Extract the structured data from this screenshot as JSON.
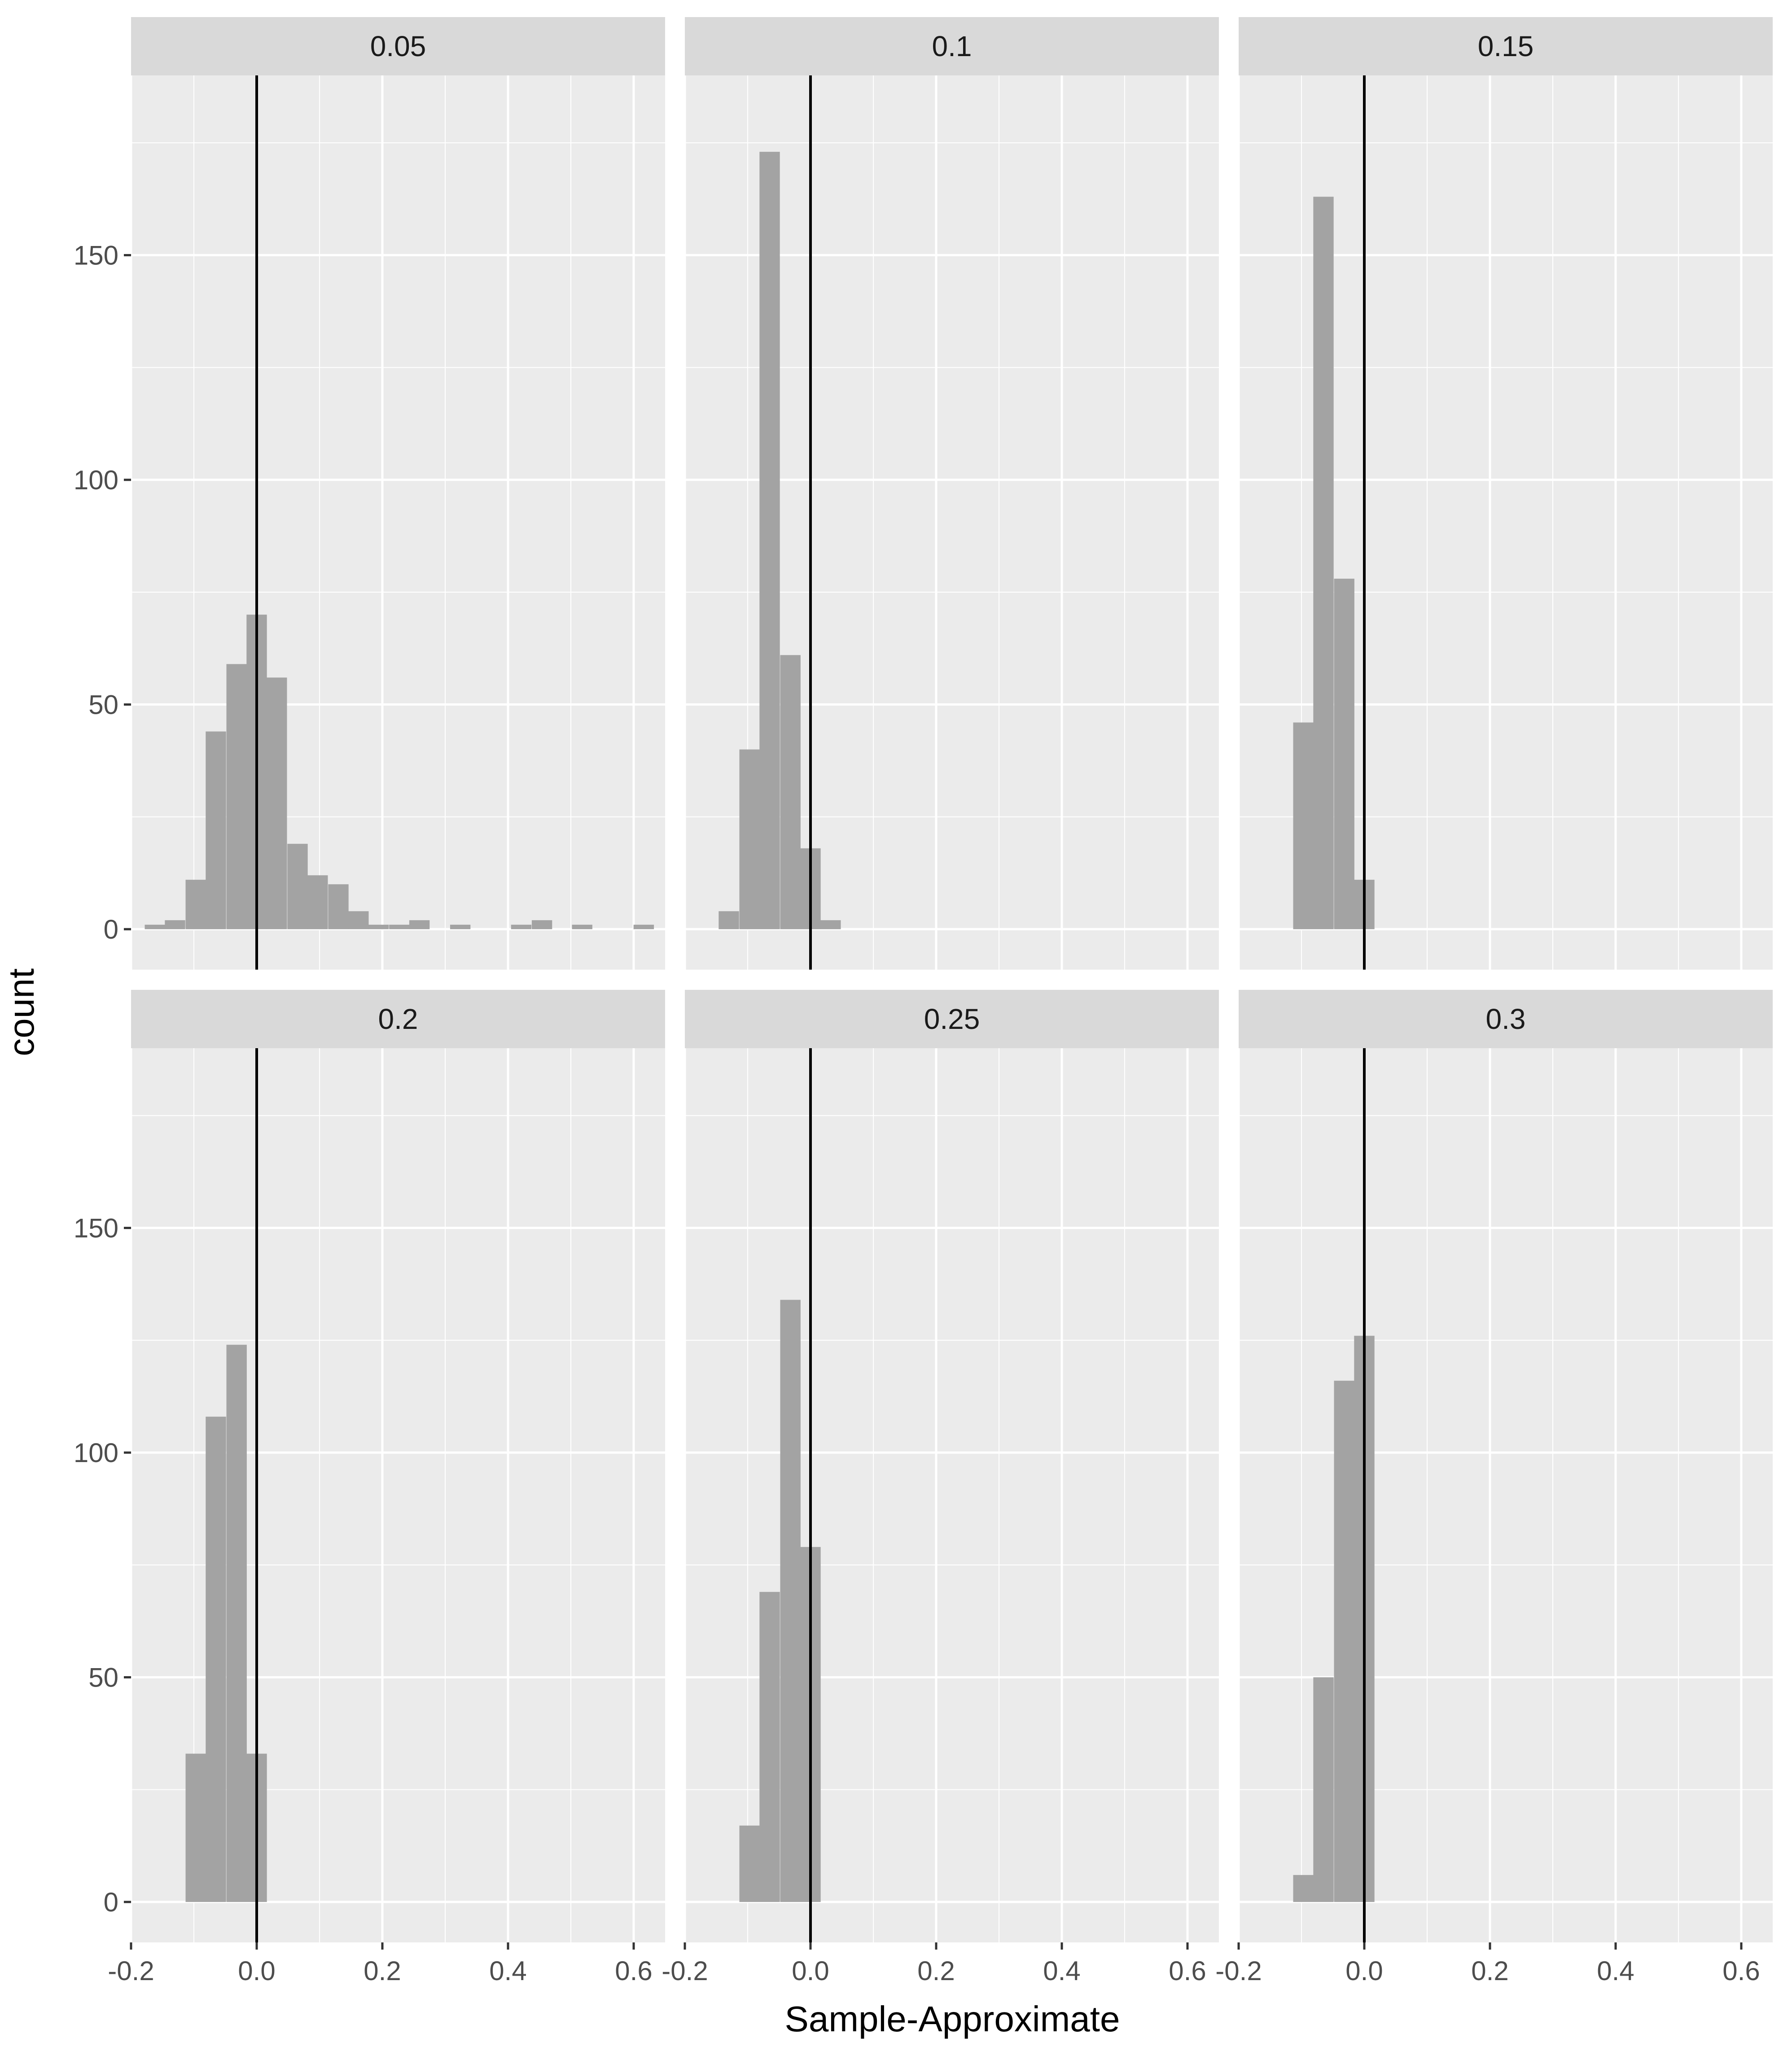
{
  "chart_data": {
    "type": "bar",
    "subtype": "faceted-histogram",
    "xlabel": "Sample-Approximate",
    "ylabel": "count",
    "xlim": [
      -0.2,
      0.65
    ],
    "ylim": [
      -9,
      190
    ],
    "x_ticks": [
      -0.2,
      0.0,
      0.2,
      0.4,
      0.6
    ],
    "x_tick_labels": [
      "-0.2",
      "0.0",
      "0.2",
      "0.4",
      "0.6"
    ],
    "y_ticks": [
      0,
      50,
      100,
      150
    ],
    "y_tick_labels": [
      "0",
      "50",
      "100",
      "150"
    ],
    "bin_width": 0.0324,
    "reference_line_x": 0,
    "grid": true,
    "bar_color": "#a3a3a3",
    "panel_background": "#ebebeb",
    "strip_background": "#d9d9d9",
    "facets": [
      {
        "label": "0.05",
        "bins": [
          {
            "x": -0.162,
            "count": 1
          },
          {
            "x": -0.13,
            "count": 2
          },
          {
            "x": -0.097,
            "count": 11
          },
          {
            "x": -0.065,
            "count": 44
          },
          {
            "x": -0.032,
            "count": 59
          },
          {
            "x": 0.0,
            "count": 70
          },
          {
            "x": 0.032,
            "count": 56
          },
          {
            "x": 0.065,
            "count": 19
          },
          {
            "x": 0.097,
            "count": 12
          },
          {
            "x": 0.13,
            "count": 10
          },
          {
            "x": 0.162,
            "count": 4
          },
          {
            "x": 0.194,
            "count": 1
          },
          {
            "x": 0.227,
            "count": 1
          },
          {
            "x": 0.259,
            "count": 2
          },
          {
            "x": 0.324,
            "count": 1
          },
          {
            "x": 0.421,
            "count": 1
          },
          {
            "x": 0.454,
            "count": 2
          },
          {
            "x": 0.518,
            "count": 1
          },
          {
            "x": 0.616,
            "count": 1
          }
        ]
      },
      {
        "label": "0.1",
        "bins": [
          {
            "x": -0.13,
            "count": 4
          },
          {
            "x": -0.097,
            "count": 40
          },
          {
            "x": -0.065,
            "count": 173
          },
          {
            "x": -0.032,
            "count": 61
          },
          {
            "x": 0.0,
            "count": 18
          },
          {
            "x": 0.032,
            "count": 2
          }
        ]
      },
      {
        "label": "0.15",
        "bins": [
          {
            "x": -0.097,
            "count": 46
          },
          {
            "x": -0.065,
            "count": 163
          },
          {
            "x": -0.032,
            "count": 78
          },
          {
            "x": 0.0,
            "count": 11
          }
        ]
      },
      {
        "label": "0.2",
        "bins": [
          {
            "x": -0.097,
            "count": 33
          },
          {
            "x": -0.065,
            "count": 108
          },
          {
            "x": -0.032,
            "count": 124
          },
          {
            "x": 0.0,
            "count": 33
          }
        ]
      },
      {
        "label": "0.25",
        "bins": [
          {
            "x": -0.097,
            "count": 17
          },
          {
            "x": -0.065,
            "count": 69
          },
          {
            "x": -0.032,
            "count": 134
          },
          {
            "x": 0.0,
            "count": 79
          }
        ]
      },
      {
        "label": "0.3",
        "bins": [
          {
            "x": -0.097,
            "count": 6
          },
          {
            "x": -0.065,
            "count": 50
          },
          {
            "x": -0.032,
            "count": 116
          },
          {
            "x": 0.0,
            "count": 126
          }
        ]
      }
    ]
  }
}
